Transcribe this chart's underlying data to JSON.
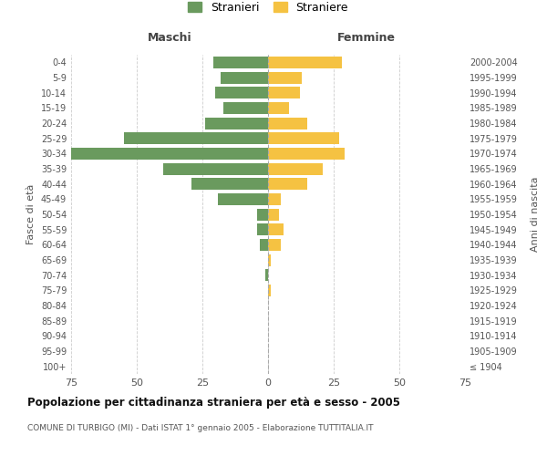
{
  "age_groups": [
    "100+",
    "95-99",
    "90-94",
    "85-89",
    "80-84",
    "75-79",
    "70-74",
    "65-69",
    "60-64",
    "55-59",
    "50-54",
    "45-49",
    "40-44",
    "35-39",
    "30-34",
    "25-29",
    "20-24",
    "15-19",
    "10-14",
    "5-9",
    "0-4"
  ],
  "birth_years": [
    "≤ 1904",
    "1905-1909",
    "1910-1914",
    "1915-1919",
    "1920-1924",
    "1925-1929",
    "1930-1934",
    "1935-1939",
    "1940-1944",
    "1945-1949",
    "1950-1954",
    "1955-1959",
    "1960-1964",
    "1965-1969",
    "1970-1974",
    "1975-1979",
    "1980-1984",
    "1985-1989",
    "1990-1994",
    "1995-1999",
    "2000-2004"
  ],
  "males": [
    0,
    0,
    0,
    0,
    0,
    0,
    1,
    0,
    3,
    4,
    4,
    19,
    29,
    40,
    75,
    55,
    24,
    17,
    20,
    18,
    21
  ],
  "females": [
    0,
    0,
    0,
    0,
    0,
    1,
    0,
    1,
    5,
    6,
    4,
    5,
    15,
    21,
    29,
    27,
    15,
    8,
    12,
    13,
    28
  ],
  "male_color": "#6a9a5e",
  "female_color": "#f5c242",
  "background_color": "#ffffff",
  "grid_color": "#cccccc",
  "xlim": 75,
  "title": "Popolazione per cittadinanza straniera per età e sesso - 2005",
  "subtitle": "COMUNE DI TURBIGO (MI) - Dati ISTAT 1° gennaio 2005 - Elaborazione TUTTITALIA.IT",
  "xlabel_left": "Maschi",
  "xlabel_right": "Femmine",
  "ylabel_left": "Fasce di età",
  "ylabel_right": "Anni di nascita",
  "legend_male": "Stranieri",
  "legend_female": "Straniere"
}
